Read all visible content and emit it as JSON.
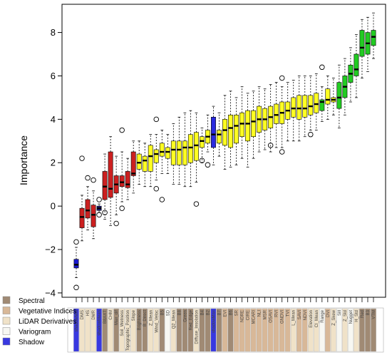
{
  "chart_data": {
    "type": "boxplot",
    "title": "",
    "xlabel": "",
    "ylabel": "Importance",
    "ylim": [
      -4.2,
      9.3
    ],
    "yticks": [
      -4,
      -2,
      0,
      2,
      4,
      6,
      8
    ],
    "grid": false,
    "legend_position": "bottom-left",
    "legend": [
      {
        "name": "Spectral",
        "color": "#a08a74"
      },
      {
        "name": "Vegetative Indices",
        "color": "#d8b898"
      },
      {
        "name": "LiDAR Derivatives",
        "color": "#f0e2c8"
      },
      {
        "name": "Variogram",
        "color": "#f7f7f2"
      },
      {
        "name": "Shadow",
        "color": "#3838e0"
      }
    ],
    "boxes": [
      {
        "label": "shadowMin",
        "group": "Shadow",
        "fill": "#1a1ad0",
        "median": -2.7,
        "q1": -2.85,
        "q3": -2.45,
        "whisker_low": -3.3,
        "whisker_high": -1.9,
        "outliers": [
          -3.75,
          -1.65
        ]
      },
      {
        "label": "DMS",
        "group": "LiDAR Derivatives",
        "fill": "#cc2020",
        "median": -0.5,
        "q1": -1.0,
        "q3": -0.1,
        "whisker_low": -1.6,
        "whisker_high": 0.5,
        "outliers": [
          2.2
        ]
      },
      {
        "label": "HS",
        "group": "LiDAR Derivatives",
        "fill": "#cc2020",
        "median": -0.2,
        "q1": -0.55,
        "q3": 0.3,
        "whisker_low": -1.1,
        "whisker_high": 0.9,
        "outliers": [
          1.3
        ]
      },
      {
        "label": "DMR",
        "group": "LiDAR Derivatives",
        "fill": "#cc2020",
        "median": -0.4,
        "q1": -0.95,
        "q3": 0.05,
        "whisker_low": -1.5,
        "whisker_high": 0.7,
        "outliers": [
          1.2
        ]
      },
      {
        "label": "shadowMean",
        "group": "Shadow",
        "fill": "#1a1a80",
        "median": -0.1,
        "q1": -0.2,
        "q3": 0.0,
        "whisker_low": -0.3,
        "whisker_high": 0.1,
        "outliers": [
          -0.4,
          0.3
        ]
      },
      {
        "label": "B8AXT",
        "group": "Spectral",
        "fill": "#cc2020",
        "median": 0.9,
        "q1": 0.3,
        "q3": 1.6,
        "whisker_low": -0.6,
        "whisker_high": 2.4,
        "outliers": [
          -0.3
        ]
      },
      {
        "label": "CHM",
        "group": "LiDAR Derivatives",
        "fill": "#cc2020",
        "median": 0.8,
        "q1": 0.4,
        "q3": 2.5,
        "whisker_low": -0.9,
        "whisker_high": 3.2,
        "outliers": []
      },
      {
        "label": "Max_dif",
        "group": "Spectral",
        "fill": "#cc2020",
        "median": 1.0,
        "q1": 0.6,
        "q3": 1.4,
        "whisker_low": -0.4,
        "whisker_high": 2.3,
        "outliers": [
          -0.8
        ]
      },
      {
        "label": "Soil_Wetness",
        "group": "LiDAR Derivatives",
        "fill": "#cc2020",
        "median": 1.1,
        "q1": 0.9,
        "q3": 1.4,
        "whisker_low": 0.2,
        "whisker_high": 2.5,
        "outliers": [
          3.5,
          -0.1
        ]
      },
      {
        "label": "Topographic_Position",
        "group": "LiDAR Derivatives",
        "fill": "#cc2020",
        "median": 1.0,
        "q1": 0.85,
        "q3": 1.6,
        "whisker_low": 0.3,
        "whisker_high": 2.2,
        "outliers": []
      },
      {
        "label": "Slope",
        "group": "LiDAR Derivatives",
        "fill": "#cc2020",
        "median": 1.5,
        "q1": 1.4,
        "q3": 2.5,
        "whisker_low": 0.6,
        "whisker_high": 3.0,
        "outliers": []
      },
      {
        "label": "Brightness",
        "group": "Spectral",
        "fill": "#ffff22",
        "median": 2.0,
        "q1": 1.7,
        "q3": 2.4,
        "whisker_low": 1.0,
        "whisker_high": 3.0,
        "outliers": []
      },
      {
        "label": "B_Direct",
        "group": "Spectral",
        "fill": "#ffff22",
        "median": 2.1,
        "q1": 1.6,
        "q3": 2.3,
        "whisker_low": 0.9,
        "whisker_high": 2.9,
        "outliers": []
      },
      {
        "label": "Z_Mean",
        "group": "LiDAR Derivatives",
        "fill": "#ffff22",
        "median": 2.3,
        "q1": 1.6,
        "q3": 2.8,
        "whisker_low": 0.9,
        "whisker_high": 3.3,
        "outliers": []
      },
      {
        "label": "Wind_Veloc",
        "group": "LiDAR Derivatives",
        "fill": "#ffff22",
        "median": 2.4,
        "q1": 2.0,
        "q3": 2.6,
        "whisker_low": 1.2,
        "whisker_high": 3.3,
        "outliers": [
          4.0,
          0.8
        ]
      },
      {
        "label": "B5",
        "group": "Spectral",
        "fill": "#ffff22",
        "median": 2.5,
        "q1": 2.3,
        "q3": 2.9,
        "whisker_low": 1.5,
        "whisker_high": 3.5,
        "outliers": [
          0.3
        ]
      },
      {
        "label": "SD",
        "group": "Variogram",
        "fill": "#ffff22",
        "median": 2.5,
        "q1": 2.2,
        "q3": 2.7,
        "whisker_low": 1.5,
        "whisker_high": 3.3,
        "outliers": []
      },
      {
        "label": "Q2_Mean",
        "group": "LiDAR Derivatives",
        "fill": "#ffff22",
        "median": 2.6,
        "q1": 1.9,
        "q3": 3.0,
        "whisker_low": 1.0,
        "whisker_high": 3.8,
        "outliers": []
      },
      {
        "label": "B8",
        "group": "Spectral",
        "fill": "#ffff22",
        "median": 2.6,
        "q1": 1.9,
        "q3": 3.0,
        "whisker_low": 1.0,
        "whisker_high": 4.1,
        "outliers": []
      },
      {
        "label": "Green",
        "group": "Spectral",
        "fill": "#ffff22",
        "median": 2.7,
        "q1": 1.9,
        "q3": 3.0,
        "whisker_low": 0.9,
        "whisker_high": 4.3,
        "outliers": []
      },
      {
        "label": "Red_Edge",
        "group": "Spectral",
        "fill": "#ffff22",
        "median": 2.7,
        "q1": 2.0,
        "q3": 3.3,
        "whisker_low": 0.9,
        "whisker_high": 4.4,
        "outliers": []
      },
      {
        "label": "Diffuse_Insolation",
        "group": "LiDAR Derivatives",
        "fill": "#ffff22",
        "median": 2.8,
        "q1": 2.1,
        "q3": 3.4,
        "whisker_low": 1.1,
        "whisker_high": 4.3,
        "outliers": [
          0.1
        ]
      },
      {
        "label": "B4",
        "group": "Spectral",
        "fill": "#ffff22",
        "median": 3.0,
        "q1": 2.7,
        "q3": 3.2,
        "whisker_low": 2.0,
        "whisker_high": 3.6,
        "outliers": [
          2.1
        ]
      },
      {
        "label": "B2",
        "group": "Spectral",
        "fill": "#ffff22",
        "median": 3.2,
        "q1": 2.9,
        "q3": 3.5,
        "whisker_low": 2.5,
        "whisker_high": 4.2,
        "outliers": [
          1.9
        ]
      },
      {
        "label": "shadowMax",
        "group": "Shadow",
        "fill": "#2a2ae0",
        "median": 3.3,
        "q1": 2.7,
        "q3": 4.1,
        "whisker_low": 1.9,
        "whisker_high": 4.6,
        "outliers": []
      },
      {
        "label": "B7",
        "group": "Spectral",
        "fill": "#ffff22",
        "median": 3.3,
        "q1": 2.9,
        "q3": 3.5,
        "whisker_low": 2.3,
        "whisker_high": 4.3,
        "outliers": []
      },
      {
        "label": "EVI",
        "group": "Vegetative Indices",
        "fill": "#ffff22",
        "median": 3.5,
        "q1": 2.8,
        "q3": 4.0,
        "whisker_low": 1.7,
        "whisker_high": 5.1,
        "outliers": []
      },
      {
        "label": "B6",
        "group": "Spectral",
        "fill": "#ffff22",
        "median": 3.6,
        "q1": 2.7,
        "q3": 4.2,
        "whisker_low": 1.8,
        "whisker_high": 5.3,
        "outliers": []
      },
      {
        "label": "SR",
        "group": "Vegetative Indices",
        "fill": "#ffff22",
        "median": 3.7,
        "q1": 2.9,
        "q3": 4.2,
        "whisker_low": 1.9,
        "whisker_high": 5.0,
        "outliers": []
      },
      {
        "label": "NDRE",
        "group": "Vegetative Indices",
        "fill": "#ffff22",
        "median": 3.8,
        "q1": 3.2,
        "q3": 4.3,
        "whisker_low": 2.2,
        "whisker_high": 5.5,
        "outliers": []
      },
      {
        "label": "CIRE",
        "group": "Vegetative Indices",
        "fill": "#ffff22",
        "median": 3.8,
        "q1": 3.0,
        "q3": 4.4,
        "whisker_low": 1.8,
        "whisker_high": 5.2,
        "outliers": []
      },
      {
        "label": "MCARI",
        "group": "Vegetative Indices",
        "fill": "#ffff22",
        "median": 3.9,
        "q1": 3.2,
        "q3": 4.4,
        "whisker_low": 2.2,
        "whisker_high": 5.3,
        "outliers": []
      },
      {
        "label": "NLI",
        "group": "Vegetative Indices",
        "fill": "#ffff22",
        "median": 4.0,
        "q1": 3.4,
        "q3": 4.6,
        "whisker_low": 2.5,
        "whisker_high": 5.5,
        "outliers": []
      },
      {
        "label": "MSR",
        "group": "Vegetative Indices",
        "fill": "#ffff22",
        "median": 4.0,
        "q1": 3.5,
        "q3": 4.5,
        "whisker_low": 2.6,
        "whisker_high": 5.4,
        "outliers": []
      },
      {
        "label": "OSAVI",
        "group": "Vegetative Indices",
        "fill": "#ffff22",
        "median": 4.1,
        "q1": 3.6,
        "q3": 4.6,
        "whisker_low": 2.5,
        "whisker_high": 5.6,
        "outliers": [
          2.8
        ]
      },
      {
        "label": "RVI",
        "group": "Vegetative Indices",
        "fill": "#ffff22",
        "median": 4.2,
        "q1": 3.8,
        "q3": 4.7,
        "whisker_low": 2.7,
        "whisker_high": 5.7,
        "outliers": []
      },
      {
        "label": "GNDVI",
        "group": "Vegetative Indices",
        "fill": "#ffff22",
        "median": 4.3,
        "q1": 3.8,
        "q3": 4.8,
        "whisker_low": 2.7,
        "whisker_high": 5.5,
        "outliers": [
          5.9,
          2.5
        ]
      },
      {
        "label": "TVI",
        "group": "Vegetative Indices",
        "fill": "#ffff22",
        "median": 4.4,
        "q1": 4.0,
        "q3": 4.8,
        "whisker_low": 3.0,
        "whisker_high": 5.7,
        "outliers": []
      },
      {
        "label": "L_Mean",
        "group": "LiDAR Derivatives",
        "fill": "#ffff22",
        "median": 4.5,
        "q1": 4.1,
        "q3": 5.0,
        "whisker_low": 3.0,
        "whisker_high": 5.8,
        "outliers": []
      },
      {
        "label": "SAVI",
        "group": "Vegetative Indices",
        "fill": "#ffff22",
        "median": 4.5,
        "q1": 4.0,
        "q3": 5.1,
        "whisker_low": 3.0,
        "whisker_high": 6.0,
        "outliers": []
      },
      {
        "label": "NDVI",
        "group": "Vegetative Indices",
        "fill": "#ffff22",
        "median": 4.5,
        "q1": 4.1,
        "q3": 5.1,
        "whisker_low": 3.2,
        "whisker_high": 6.0,
        "outliers": []
      },
      {
        "label": "Elevation",
        "group": "LiDAR Derivatives",
        "fill": "#ffff22",
        "median": 4.6,
        "q1": 4.2,
        "q3": 5.1,
        "whisker_low": 3.5,
        "whisker_high": 6.0,
        "outliers": [
          3.3
        ]
      },
      {
        "label": "CI_Mean",
        "group": "LiDAR Derivatives",
        "fill": "#ffff22",
        "median": 4.7,
        "q1": 4.3,
        "q3": 5.2,
        "whisker_low": 3.5,
        "whisker_high": 6.1,
        "outliers": []
      },
      {
        "label": "Range",
        "group": "Variogram",
        "fill": "#22cc22",
        "median": 4.8,
        "q1": 4.4,
        "q3": 4.9,
        "whisker_low": 3.9,
        "whisker_high": 5.5,
        "outliers": [
          6.4
        ]
      },
      {
        "label": "DVI",
        "group": "Vegetative Indices",
        "fill": "#ffff22",
        "median": 4.9,
        "q1": 4.7,
        "q3": 5.4,
        "whisker_low": 4.0,
        "whisker_high": 6.0,
        "outliers": []
      },
      {
        "label": "Z_Skew",
        "group": "LiDAR Derivatives",
        "fill": "#ffff22",
        "median": 4.9,
        "q1": 4.8,
        "q3": 5.0,
        "whisker_low": 4.2,
        "whisker_high": 5.9,
        "outliers": []
      },
      {
        "label": "Sill",
        "group": "Variogram",
        "fill": "#22cc22",
        "median": 5.0,
        "q1": 4.5,
        "q3": 5.7,
        "whisker_low": 3.6,
        "whisker_high": 6.5,
        "outliers": []
      },
      {
        "label": "Z_Std",
        "group": "LiDAR Derivatives",
        "fill": "#22cc22",
        "median": 5.5,
        "q1": 5.0,
        "q3": 6.0,
        "whisker_low": 4.2,
        "whisker_high": 6.8,
        "outliers": []
      },
      {
        "label": "Nugget",
        "group": "Variogram",
        "fill": "#22cc22",
        "median": 6.1,
        "q1": 5.7,
        "q3": 6.5,
        "whisker_low": 4.8,
        "whisker_high": 7.3,
        "outliers": []
      },
      {
        "label": "H_Std",
        "group": "LiDAR Derivatives",
        "fill": "#22cc22",
        "median": 6.3,
        "q1": 6.0,
        "q3": 7.0,
        "whisker_low": 5.0,
        "whisker_high": 7.9,
        "outliers": []
      },
      {
        "label": "Red",
        "group": "Spectral",
        "fill": "#22cc22",
        "median": 7.3,
        "q1": 6.9,
        "q3": 8.1,
        "whisker_low": 5.9,
        "whisker_high": 8.6,
        "outliers": []
      },
      {
        "label": "B3",
        "group": "Spectral",
        "fill": "#22cc22",
        "median": 7.5,
        "q1": 7.0,
        "q3": 8.0,
        "whisker_low": 6.2,
        "whisker_high": 8.7,
        "outliers": []
      },
      {
        "label": "VTM",
        "group": "Spectral",
        "fill": "#22cc22",
        "median": 7.8,
        "q1": 7.4,
        "q3": 8.1,
        "whisker_low": 6.8,
        "whisker_high": 8.9,
        "outliers": []
      }
    ]
  }
}
